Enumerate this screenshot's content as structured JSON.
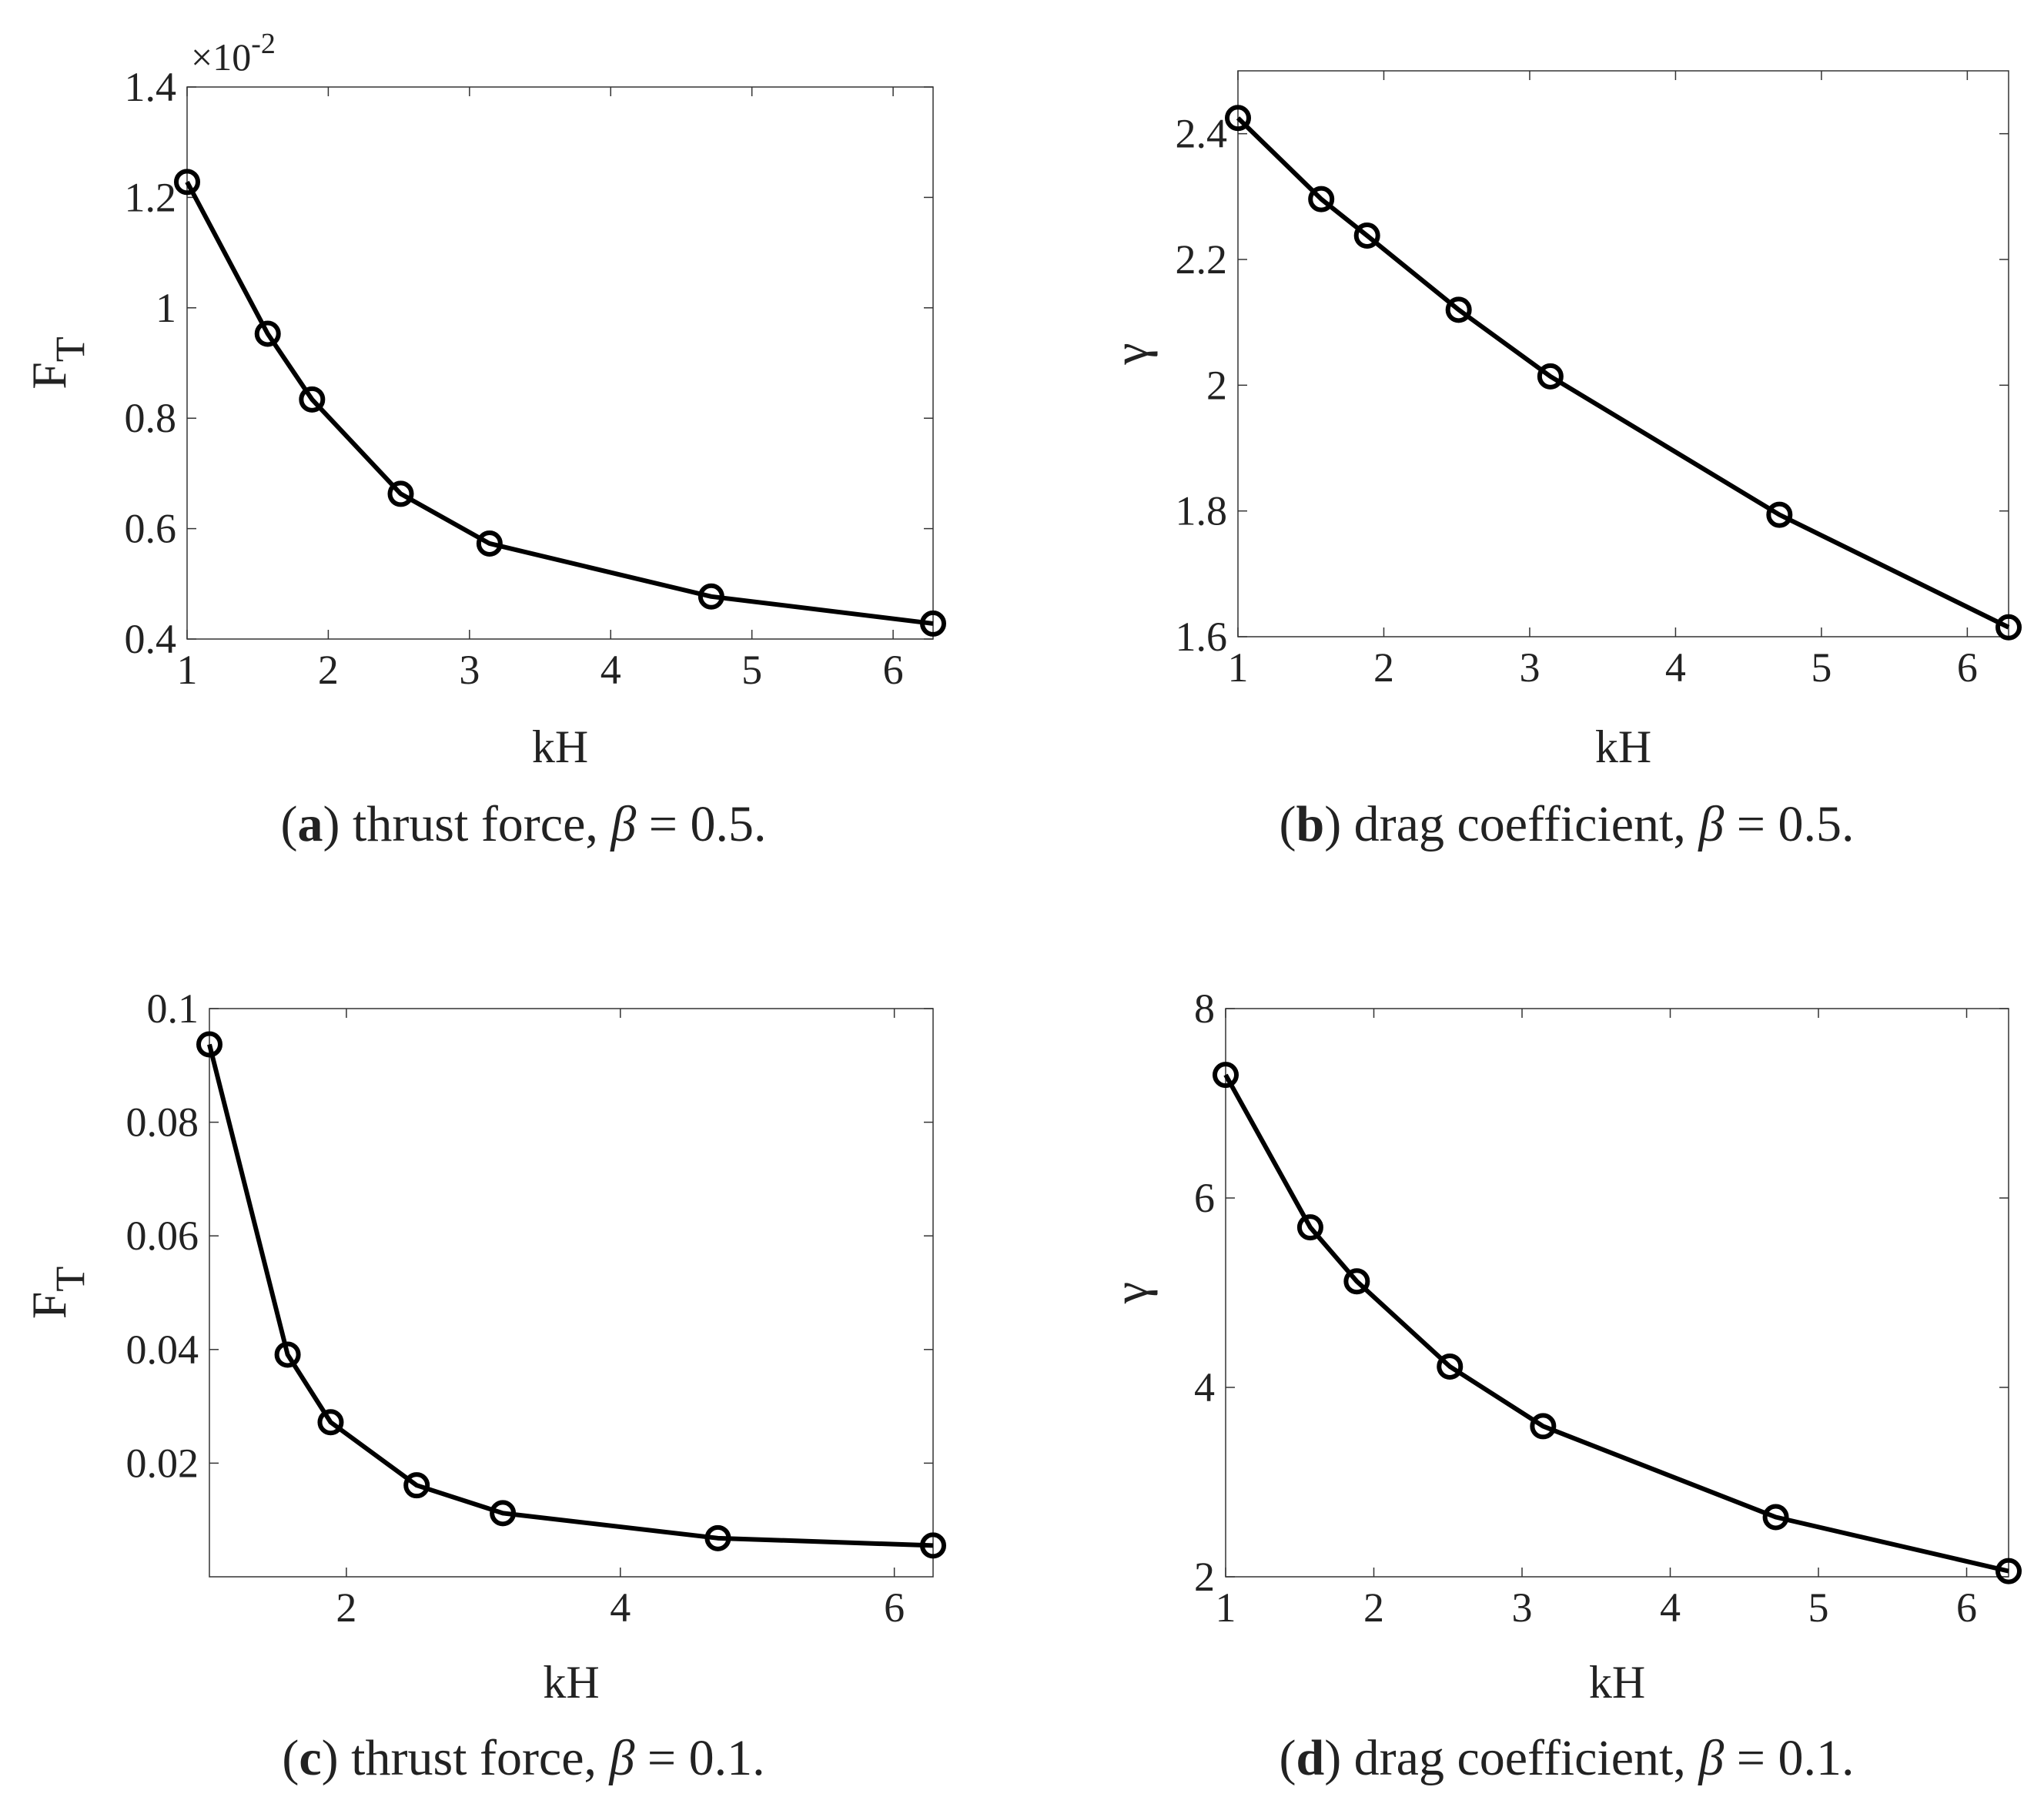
{
  "figure": {
    "captions": [
      {
        "label": "a",
        "text": " thrust force, ",
        "param": "β",
        "value": " = 0.5."
      },
      {
        "label": "b",
        "text": " drag coefficient, ",
        "param": "β",
        "value": " = 0.5."
      },
      {
        "label": "c",
        "text": " thrust force, ",
        "param": "β",
        "value": " = 0.1."
      },
      {
        "label": "d",
        "text": " drag coefficient, ",
        "param": "β",
        "value": " = 0.1."
      }
    ]
  },
  "chart_data": [
    {
      "type": "line",
      "xlabel": "kH",
      "ylabel": "F",
      "ylabel_sub": "T",
      "exponent_label": "×10",
      "exponent_power": "-2",
      "xlim": [
        1,
        6.283
      ],
      "ylim": [
        0.4,
        1.4
      ],
      "xticks": [
        1,
        2,
        3,
        4,
        5,
        6
      ],
      "xtick_labels": [
        "1",
        "2",
        "3",
        "4",
        "5",
        "6"
      ],
      "yticks": [
        0.4,
        0.6,
        0.8,
        1.0,
        1.2,
        1.4
      ],
      "ytick_labels": [
        "0.4",
        "0.6",
        "0.8",
        "1",
        "1.2",
        "1.4"
      ],
      "series": [
        {
          "color": "#000000",
          "marker": "circle",
          "x": [
            1.0,
            1.571,
            1.885,
            2.513,
            3.142,
            4.712,
            6.283
          ],
          "y": [
            1.228,
            0.953,
            0.834,
            0.663,
            0.573,
            0.477,
            0.428
          ]
        }
      ]
    },
    {
      "type": "line",
      "xlabel": "kH",
      "ylabel": "γ",
      "xlim": [
        1,
        6.283
      ],
      "ylim": [
        1.6,
        2.5
      ],
      "xticks": [
        1,
        2,
        3,
        4,
        5,
        6
      ],
      "xtick_labels": [
        "1",
        "2",
        "3",
        "4",
        "5",
        "6"
      ],
      "yticks": [
        1.6,
        1.8,
        2.0,
        2.2,
        2.4
      ],
      "ytick_labels": [
        "1.6",
        "1.8",
        "2",
        "2.2",
        "2.4"
      ],
      "series": [
        {
          "color": "#000000",
          "marker": "circle",
          "x": [
            1.0,
            1.571,
            1.885,
            2.513,
            3.142,
            4.712,
            6.283
          ],
          "y": [
            2.425,
            2.296,
            2.238,
            2.12,
            2.014,
            1.794,
            1.615
          ]
        }
      ]
    },
    {
      "type": "line",
      "xlabel": "kH",
      "ylabel": "F",
      "ylabel_sub": "T",
      "xlim": [
        1,
        6.283
      ],
      "ylim": [
        0.0,
        0.1
      ],
      "xticks": [
        2,
        4,
        6
      ],
      "xtick_labels": [
        "2",
        "4",
        "6"
      ],
      "yticks": [
        0.02,
        0.04,
        0.06,
        0.08,
        0.1
      ],
      "ytick_labels": [
        "0.02",
        "0.04",
        "0.06",
        "0.08",
        "0.1"
      ],
      "series": [
        {
          "color": "#000000",
          "marker": "circle",
          "x": [
            1.0,
            1.571,
            1.885,
            2.513,
            3.142,
            4.712,
            6.283
          ],
          "y": [
            0.0937,
            0.0391,
            0.0272,
            0.0161,
            0.0112,
            0.0068,
            0.0055
          ]
        }
      ]
    },
    {
      "type": "line",
      "xlabel": "kH",
      "ylabel": "γ",
      "xlim": [
        1,
        6.283
      ],
      "ylim": [
        2,
        8
      ],
      "xticks": [
        1,
        2,
        3,
        4,
        5,
        6
      ],
      "xtick_labels": [
        "1",
        "2",
        "3",
        "4",
        "5",
        "6"
      ],
      "yticks": [
        2,
        4,
        6,
        8
      ],
      "ytick_labels": [
        "2",
        "4",
        "6",
        "8"
      ],
      "series": [
        {
          "color": "#000000",
          "marker": "circle",
          "x": [
            1.0,
            1.571,
            1.885,
            2.513,
            3.142,
            4.712,
            6.283
          ],
          "y": [
            7.3,
            5.69,
            5.12,
            4.22,
            3.59,
            2.63,
            2.06
          ]
        }
      ]
    }
  ]
}
